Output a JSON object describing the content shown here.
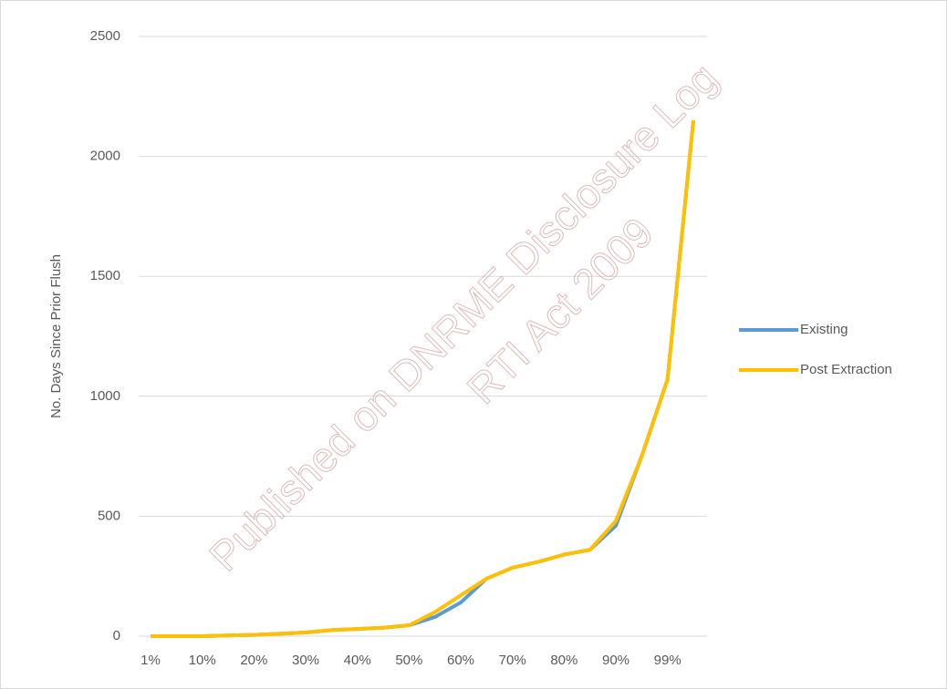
{
  "chart_data": {
    "type": "line",
    "y_label": "No. Days Since Prior Flush",
    "annotations": [
      "Published on DNRME Disclosure Log",
      "RTI Act 2009"
    ],
    "categories": [
      "1%",
      null,
      "10%",
      null,
      "20%",
      null,
      "30%",
      null,
      "40%",
      null,
      "50%",
      null,
      "60%",
      null,
      "70%",
      null,
      "80%",
      null,
      "90%",
      null,
      "99%",
      null
    ],
    "series": [
      {
        "name": "Existing",
        "color": "#5b9bd5",
        "values": [
          0,
          0,
          0,
          3,
          5,
          10,
          15,
          25,
          30,
          35,
          45,
          80,
          140,
          240,
          285,
          310,
          340,
          360,
          460,
          750,
          1070,
          2150
        ]
      },
      {
        "name": "Post Extraction",
        "color": "#ffc000",
        "values": [
          0,
          0,
          0,
          3,
          5,
          10,
          15,
          25,
          30,
          35,
          45,
          100,
          170,
          240,
          285,
          310,
          340,
          360,
          480,
          750,
          1070,
          2150
        ]
      }
    ],
    "ylim": [
      0,
      2500
    ],
    "yticks": [
      0,
      500,
      1000,
      1500,
      2000,
      2500
    ],
    "grid": true,
    "legend": "right"
  }
}
